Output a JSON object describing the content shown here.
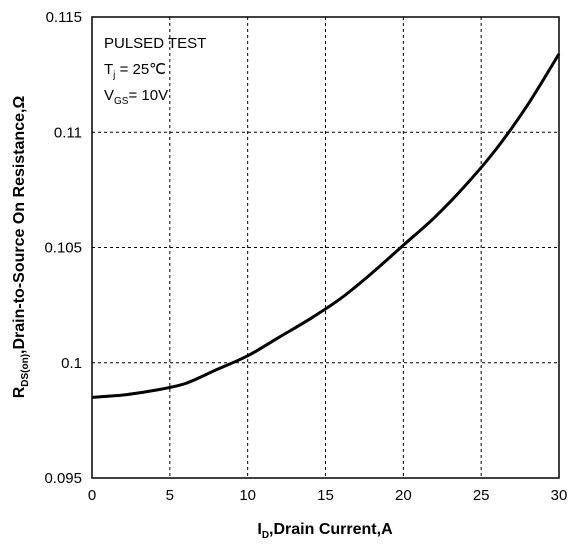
{
  "chart_data": {
    "type": "line",
    "title": "",
    "xlabel": {
      "main": "I",
      "sub": "D",
      "rest": ",Drain  Current,A"
    },
    "ylabel": {
      "main": "R",
      "sub": "DS(on)",
      "rest": ",Drain-to-Source On Resistance,Ω"
    },
    "xlim": [
      0,
      30
    ],
    "ylim": [
      0.095,
      0.115
    ],
    "xticks": [
      0,
      5,
      10,
      15,
      20,
      25,
      30
    ],
    "xtick_labels": [
      "0",
      "5",
      "10",
      "15",
      "20",
      "25",
      "30"
    ],
    "yticks": [
      0.095,
      0.1,
      0.105,
      0.11,
      0.115
    ],
    "ytick_labels": [
      "0.095",
      "0.1",
      "0.105",
      "0.11",
      "0.115"
    ],
    "grid": true,
    "annotations": {
      "line1": "PULSED TEST",
      "line2": {
        "main": "T",
        "sub": "j",
        "rest": " = 25℃"
      },
      "line3": {
        "main": "V",
        "sub": "GS",
        "rest": "= 10V"
      }
    },
    "series": [
      {
        "x": [
          0,
          2,
          4,
          6,
          8,
          10,
          12,
          14,
          16,
          18,
          20,
          22,
          24,
          26,
          28,
          30
        ],
        "y": [
          0.0985,
          0.0986,
          0.0988,
          0.0991,
          0.0997,
          0.1003,
          0.1011,
          0.1019,
          0.1028,
          0.1039,
          0.1051,
          0.1063,
          0.1077,
          0.1093,
          0.1112,
          0.1134
        ],
        "color": "#000000"
      }
    ]
  }
}
